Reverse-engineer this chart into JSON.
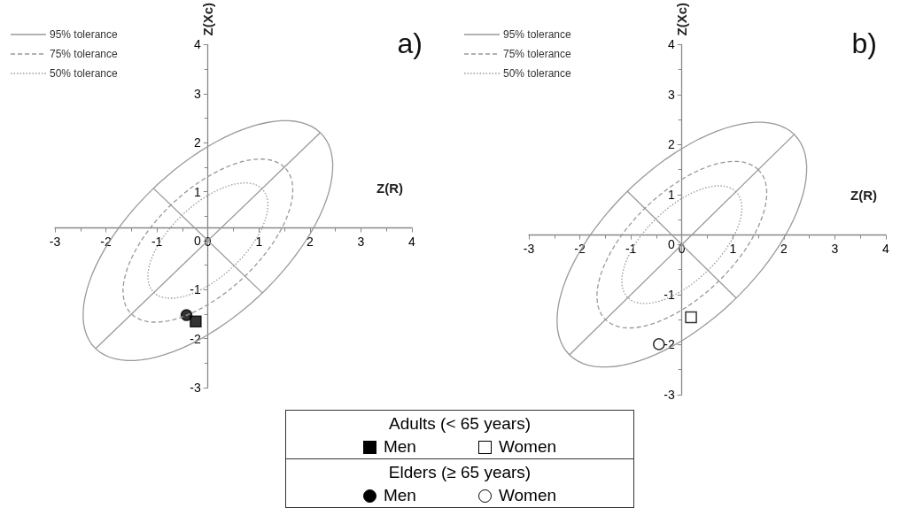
{
  "chart_data": [
    {
      "type": "line",
      "title": "a)",
      "xlabel": "Z(R)",
      "ylabel": "Z(Xc)",
      "xlim": [
        -3,
        4
      ],
      "ylim": [
        -3,
        4
      ],
      "xticks": [
        -3,
        -2,
        -1,
        0,
        1,
        2,
        3,
        4
      ],
      "yticks": [
        -3,
        -2,
        -1,
        0,
        1,
        2,
        3,
        4
      ],
      "grid": false,
      "annotations": [
        "95% tolerance",
        "75% tolerance",
        "50% tolerance"
      ],
      "series": [
        {
          "color": "#999999",
          "line_style": "solid",
          "x": [
            -2.2,
            2.2
          ],
          "values": [
            -2.2,
            2.2
          ]
        },
        {
          "color": "#999999",
          "line_style": "solid",
          "x": [
            -1.07,
            1.07
          ],
          "values": [
            1.07,
            -1.07
          ]
        },
        {
          "type": "scatter",
          "name": "Men",
          "marker": "square",
          "color": "#000000",
          "x": [
            -0.24
          ],
          "values": [
            -1.65
          ]
        },
        {
          "type": "scatter",
          "name": "Men",
          "marker": "circle",
          "color": "#000000",
          "x": [
            -0.42
          ],
          "values": [
            -1.52
          ]
        }
      ]
    },
    {
      "type": "line",
      "title": "b)",
      "xlabel": "Z(R)",
      "ylabel": "Z(Xc)",
      "xlim": [
        -3,
        4
      ],
      "ylim": [
        -3,
        4
      ],
      "xticks": [
        -3,
        -2,
        -1,
        0,
        1,
        2,
        3,
        4
      ],
      "yticks": [
        -3,
        -2,
        -1,
        0,
        1,
        2,
        3,
        4
      ],
      "grid": false,
      "annotations": [
        "95% tolerance",
        "75% tolerance",
        "50% tolerance"
      ],
      "series": [
        {
          "color": "#999999",
          "line_style": "solid",
          "x": [
            -2.2,
            2.2
          ],
          "values": [
            -2.2,
            2.2
          ]
        },
        {
          "color": "#999999",
          "line_style": "solid",
          "x": [
            -1.07,
            1.07
          ],
          "values": [
            1.07,
            -1.07
          ]
        },
        {
          "type": "scatter",
          "name": "Women",
          "marker": "square",
          "color": "#ffffff",
          "x": [
            0.18
          ],
          "values": [
            -1.45
          ]
        },
        {
          "type": "scatter",
          "name": "Women",
          "marker": "circle",
          "color": "#ffffff",
          "x": [
            -0.45
          ],
          "values": [
            -1.99
          ]
        }
      ]
    },
    {
      "type": "other",
      "annotations": [
        "Adults (< 65 years)",
        "Elders (≥ 65 years)"
      ]
    }
  ]
}
